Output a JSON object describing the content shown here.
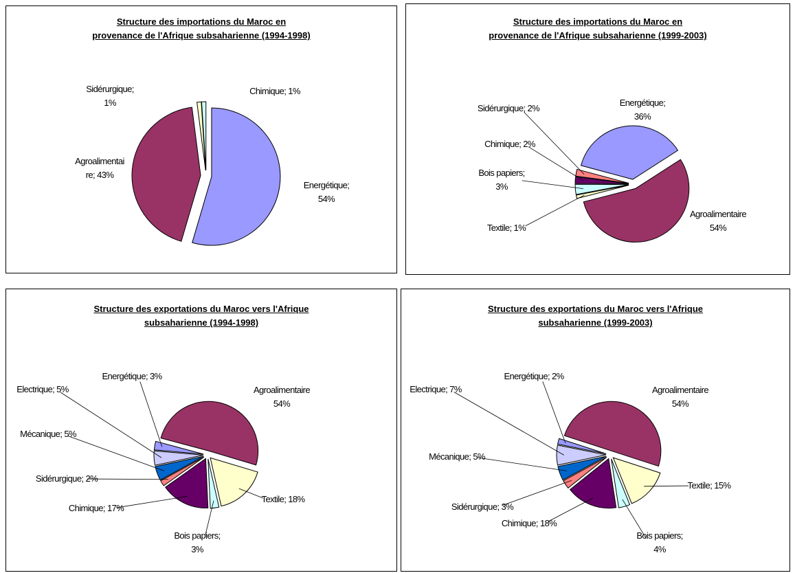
{
  "chart_data": [
    {
      "type": "pie",
      "title": "Structure des importations du Maroc en\nprovenance de l'Afrique subsaharienne (1994-1998)",
      "values": [
        54,
        43,
        1,
        1
      ],
      "value_labels": [
        "Energétique;\n54%",
        "Agroalimentai\nre; 43%",
        "Sidérurgique;\n1%",
        "Chimique; 1%"
      ],
      "colors": [
        "#9999ff",
        "#993366",
        "#ffffcc",
        "#ccffff"
      ]
    },
    {
      "type": "pie",
      "title": "Structure des importations du Maroc en\nprovenance de l'Afrique subsaharienne (1999-2003)",
      "values": [
        36,
        54,
        1,
        3,
        2,
        2
      ],
      "value_labels": [
        "Energétique;\n36%",
        "Agroalimentaire\n54%",
        "Textile; 1%",
        "Bois papiers;\n3%",
        "Chimique; 2%",
        "Sidérurgique; 2%"
      ],
      "colors": [
        "#9999ff",
        "#993366",
        "#ffffcc",
        "#ccffff",
        "#660066",
        "#ff8080"
      ]
    },
    {
      "type": "pie",
      "title": "Structure des exportations du Maroc vers l'Afrique\nsubsaharienne (1994-1998)",
      "values": [
        54,
        18,
        3,
        17,
        2,
        5,
        5,
        3
      ],
      "value_labels": [
        "Agroalimentaire\n54%",
        "Textile; 18%",
        "Bois papiers;\n3%",
        "Chimique; 17%",
        "Sidérurgique; 2%",
        "Mécanique; 5%",
        "Electrique; 5%",
        "Energétique; 3%"
      ],
      "colors": [
        "#993366",
        "#ffffcc",
        "#ccffff",
        "#660066",
        "#ff8080",
        "#0066cc",
        "#ccccff",
        "#9999ff"
      ]
    },
    {
      "type": "pie",
      "title": "Structure des exportations du Maroc vers l'Afrique\nsubsaharienne (1999-2003)",
      "values": [
        54,
        15,
        4,
        18,
        3,
        5,
        7,
        2
      ],
      "value_labels": [
        "Agroalimentaire\n54%",
        "Textile; 15%",
        "Bois papiers;\n4%",
        "Chimique; 18%",
        "Sidérurgique; 3%",
        "Mécanique; 5%",
        "Electrique; 7%",
        "Energétique; 2%"
      ],
      "colors": [
        "#993366",
        "#ffffcc",
        "#ccffff",
        "#660066",
        "#ff8080",
        "#0066cc",
        "#ccccff",
        "#9999ff"
      ]
    }
  ]
}
